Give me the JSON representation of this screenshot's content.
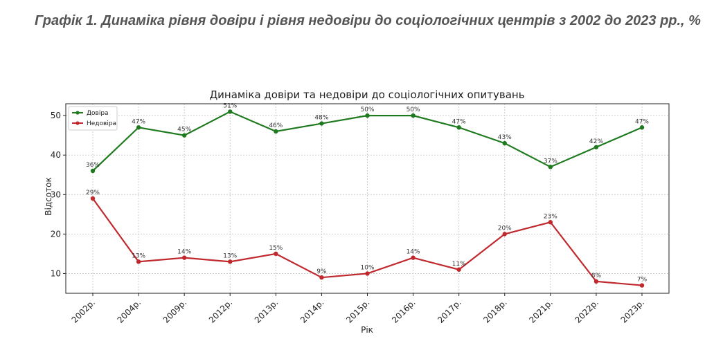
{
  "caption": "Графік 1. Динаміка рівня довіри і рівня недовіри до соціологічних центрів  з 2002 до 2023 рр., %",
  "chart_data": {
    "type": "line",
    "title": "Динаміка довіри та недовіри до соціологічних опитувань",
    "xlabel": "Рік",
    "ylabel": "Відсоток",
    "categories": [
      "2002р.",
      "2004р.",
      "2009р.",
      "2012р.",
      "2013р.",
      "2014р.",
      "2015р.",
      "2016р.",
      "2017р.",
      "2018р.",
      "2021р.",
      "2022р.",
      "2023р."
    ],
    "yticks": [
      10,
      20,
      30,
      40,
      50
    ],
    "ylim": [
      5,
      53
    ],
    "grid": true,
    "legend_position": "top-left",
    "series": [
      {
        "name": "Довіра",
        "color": "#1f7a1f",
        "values": [
          36,
          47,
          45,
          51,
          46,
          48,
          50,
          50,
          47,
          43,
          37,
          42,
          47
        ],
        "labels": [
          "36%",
          "47%",
          "45%",
          "51%",
          "46%",
          "48%",
          "50%",
          "50%",
          "47%",
          "43%",
          "37%",
          "42%",
          "47%"
        ]
      },
      {
        "name": "Недовіра",
        "color": "#c0282d",
        "values": [
          29,
          13,
          14,
          13,
          15,
          9,
          10,
          14,
          11,
          20,
          23,
          8,
          7
        ],
        "labels": [
          "29%",
          "13%",
          "14%",
          "13%",
          "15%",
          "9%",
          "10%",
          "14%",
          "11%",
          "20%",
          "23%",
          "8%",
          "7%"
        ]
      }
    ]
  }
}
